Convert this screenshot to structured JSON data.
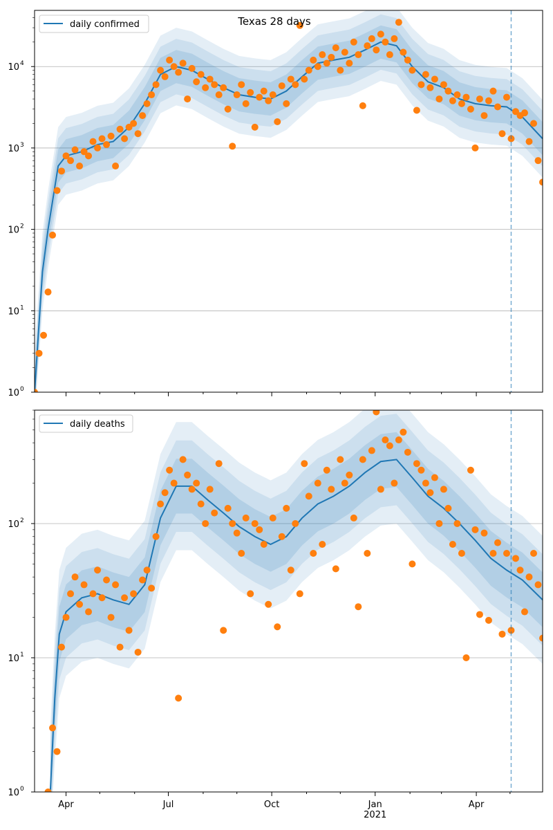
{
  "chart_data": [
    {
      "type": "scatter",
      "title": "Texas 28 days",
      "legend": {
        "label": "daily confirmed",
        "placement": "top-left"
      },
      "yscale": "log",
      "ylim": [
        1,
        49000
      ],
      "yticks": [
        {
          "value": 1,
          "base": "10",
          "exp": "0"
        },
        {
          "value": 10,
          "base": "10",
          "exp": "1"
        },
        {
          "value": 100,
          "base": "10",
          "exp": "2"
        },
        {
          "value": 1000,
          "base": "10",
          "exp": "3"
        },
        {
          "value": 10000,
          "base": "10",
          "exp": "4"
        }
      ],
      "grid": true,
      "x_origin_date": "2020-03-04",
      "xlim_days": [
        0,
        452
      ],
      "vline_day": 424,
      "band_inner_factor": 1.6,
      "band_outer_factor": 3.0,
      "trend": {
        "days": [
          0,
          7,
          12,
          21,
          28,
          42,
          56,
          70,
          84,
          98,
          112,
          126,
          140,
          154,
          168,
          182,
          196,
          210,
          224,
          238,
          252,
          266,
          280,
          294,
          308,
          322,
          336,
          350,
          364,
          378,
          392,
          406,
          420,
          434,
          452
        ],
        "values": [
          1,
          30,
          100,
          600,
          800,
          900,
          1100,
          1200,
          1800,
          3500,
          8000,
          10000,
          9000,
          7000,
          5500,
          4500,
          4200,
          4000,
          5000,
          7500,
          11000,
          12000,
          13000,
          16000,
          20000,
          18000,
          10000,
          6500,
          5500,
          4000,
          3500,
          3300,
          3200,
          2400,
          1300
        ]
      },
      "scatter": {
        "start_day": 0,
        "step_days": 4,
        "values": [
          1,
          3,
          5,
          17,
          85,
          300,
          520,
          800,
          700,
          950,
          600,
          900,
          800,
          1200,
          1000,
          1300,
          1100,
          1400,
          600,
          1700,
          1300,
          1800,
          2000,
          1500,
          2500,
          3500,
          4500,
          6000,
          9000,
          7500,
          12000,
          10000,
          8500,
          11000,
          4000,
          9500,
          6500,
          8000,
          5500,
          7000,
          6000,
          4500,
          5500,
          3000,
          1050,
          4500,
          6000,
          3500,
          4800,
          1800,
          4200,
          5000,
          3800,
          4500,
          2100,
          5800,
          3500,
          7000,
          6000,
          32000,
          7000,
          9000,
          12000,
          10000,
          14000,
          11000,
          13000,
          17000,
          9000,
          15000,
          11000,
          20000,
          14000,
          3300,
          18000,
          22000,
          16000,
          25000,
          20000,
          14000,
          22000,
          35000,
          15000,
          12000,
          9000,
          2900,
          6000,
          8000,
          5500,
          7000,
          4000,
          6000,
          5000,
          3800,
          4500,
          3500,
          4200,
          3000,
          1000,
          4000,
          2500,
          3800,
          5000,
          3200,
          1500,
          4200,
          1300,
          2800,
          2500,
          2700,
          1200,
          2000,
          700,
          380
        ]
      }
    },
    {
      "type": "scatter",
      "legend": {
        "label": "daily deaths",
        "placement": "top-left"
      },
      "yscale": "log",
      "ylim": [
        1,
        700
      ],
      "yticks": [
        {
          "value": 1,
          "base": "10",
          "exp": "0"
        },
        {
          "value": 10,
          "base": "10",
          "exp": "1"
        },
        {
          "value": 100,
          "base": "10",
          "exp": "2"
        }
      ],
      "grid": true,
      "x_origin_date": "2020-03-04",
      "xlim_days": [
        0,
        452
      ],
      "vline_day": 424,
      "band_inner_factor": 1.6,
      "band_outer_factor": 3.0,
      "xticks": [
        {
          "day": 28,
          "label": "Apr"
        },
        {
          "day": 119,
          "label": "Jul"
        },
        {
          "day": 211,
          "label": "Oct"
        },
        {
          "day": 303,
          "label": "Jan",
          "sub": "2021"
        },
        {
          "day": 393,
          "label": "Apr"
        }
      ],
      "minor_xtick_days": [
        -3,
        58,
        89,
        150,
        180,
        242,
        272,
        334,
        362,
        423
      ],
      "trend": {
        "days": [
          14,
          18,
          22,
          28,
          42,
          56,
          70,
          84,
          98,
          112,
          126,
          140,
          154,
          168,
          182,
          196,
          210,
          224,
          238,
          252,
          266,
          280,
          294,
          308,
          322,
          336,
          350,
          364,
          378,
          392,
          406,
          420,
          434,
          452
        ],
        "values": [
          1,
          5,
          15,
          22,
          28,
          30,
          27,
          25,
          35,
          110,
          190,
          190,
          150,
          120,
          95,
          80,
          70,
          80,
          110,
          140,
          160,
          190,
          240,
          290,
          300,
          220,
          160,
          130,
          100,
          75,
          55,
          45,
          38,
          27
        ]
      },
      "scatter": {
        "start_day": 12,
        "step_days": 4,
        "values": [
          1,
          3,
          2,
          12,
          20,
          30,
          40,
          25,
          35,
          22,
          30,
          45,
          28,
          38,
          20,
          35,
          12,
          28,
          16,
          30,
          11,
          38,
          45,
          33,
          80,
          140,
          170,
          250,
          200,
          5,
          300,
          230,
          180,
          200,
          140,
          100,
          180,
          120,
          280,
          16,
          130,
          100,
          85,
          60,
          110,
          30,
          100,
          90,
          70,
          25,
          110,
          17,
          80,
          130,
          45,
          100,
          30,
          280,
          160,
          60,
          200,
          70,
          250,
          180,
          46,
          300,
          200,
          230,
          110,
          24,
          300,
          60,
          350,
          680,
          180,
          420,
          380,
          200,
          420,
          480,
          340,
          50,
          280,
          250,
          200,
          170,
          220,
          100,
          180,
          130,
          70,
          100,
          60,
          10,
          250,
          90,
          21,
          85,
          19,
          60,
          72,
          15,
          60,
          16,
          55,
          45,
          22,
          40,
          60,
          35,
          14
        ]
      }
    }
  ]
}
